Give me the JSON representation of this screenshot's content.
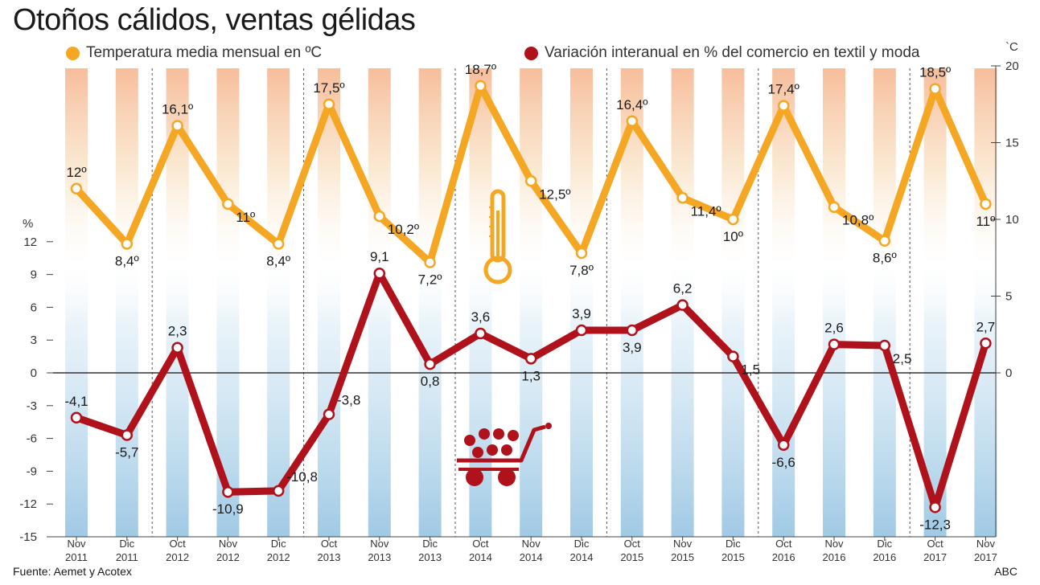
{
  "title": "Otoños cálidos, ventas gélidas",
  "legend": {
    "temperature": "Temperatura media mensual en ºC",
    "variation": "Variación interanual en % del comercio en textil y moda"
  },
  "source": "Fuente: Aemet y Acotex",
  "credit": "ABC",
  "colors": {
    "temperature": "#f5a623",
    "variation": "#b0121c",
    "warm_band": "#f4a77a",
    "cold_band": "#8fc0e0"
  },
  "chart_data": {
    "type": "line",
    "categories": [
      {
        "month": "Nov",
        "year": "2011"
      },
      {
        "month": "Dic",
        "year": "2011"
      },
      {
        "month": "Oct",
        "year": "2012"
      },
      {
        "month": "Nov",
        "year": "2012"
      },
      {
        "month": "Dic",
        "year": "2012"
      },
      {
        "month": "Oct",
        "year": "2013"
      },
      {
        "month": "Nov",
        "year": "2013"
      },
      {
        "month": "Dic",
        "year": "2013"
      },
      {
        "month": "Oct",
        "year": "2014"
      },
      {
        "month": "Nov",
        "year": "2014"
      },
      {
        "month": "Dic",
        "year": "2014"
      },
      {
        "month": "Oct",
        "year": "2015"
      },
      {
        "month": "Nov",
        "year": "2015"
      },
      {
        "month": "Dic",
        "year": "2015"
      },
      {
        "month": "Oct",
        "year": "2016"
      },
      {
        "month": "Nov",
        "year": "2016"
      },
      {
        "month": "Dic",
        "year": "2016"
      },
      {
        "month": "Oct",
        "year": "2017"
      },
      {
        "month": "Nov",
        "year": "2017"
      }
    ],
    "series": [
      {
        "name": "Temperatura media mensual en ºC",
        "axis": "right",
        "values": [
          12,
          8.4,
          16.1,
          11,
          8.4,
          17.5,
          10.2,
          7.2,
          18.7,
          12.5,
          7.8,
          16.4,
          11.4,
          10,
          17.4,
          10.8,
          8.6,
          18.5,
          11
        ],
        "labels": [
          "12º",
          "8,4º",
          "16,1º",
          "11º",
          "8,4º",
          "17,5º",
          "10,2º",
          "7,2º",
          "18,7º",
          "12,5º",
          "7,8º",
          "16,4º",
          "11,4º",
          "10º",
          "17,4º",
          "10,8º",
          "8,6º",
          "18,5º",
          "11º"
        ]
      },
      {
        "name": "Variación interanual en % del comercio en textil y moda",
        "axis": "left",
        "values": [
          -4.1,
          -5.7,
          2.3,
          -10.9,
          -10.8,
          -3.8,
          9.1,
          0.8,
          3.6,
          1.3,
          3.9,
          3.9,
          6.2,
          1.5,
          -6.6,
          2.6,
          2.5,
          -12.3,
          2.7
        ],
        "labels": [
          "-4,1",
          "-5,7",
          "2,3",
          "-10,9",
          "-10,8",
          "-3,8",
          "9,1",
          "0,8",
          "3,6",
          "1,3",
          "3,9",
          "3,9",
          "6,2",
          "1,5",
          "-6,6",
          "2,6",
          "2,5",
          "-12,3",
          "2,7"
        ]
      }
    ],
    "left_axis": {
      "unit": "%",
      "ylim": [
        -15,
        12
      ],
      "ticks": [
        {
          "value": 12,
          "label": "12"
        },
        {
          "value": 9,
          "label": "9"
        },
        {
          "value": 6,
          "label": "6"
        },
        {
          "value": 3,
          "label": "3"
        },
        {
          "value": 0,
          "label": "0"
        },
        {
          "value": -3,
          "label": "-3"
        },
        {
          "value": -6,
          "label": "-6"
        },
        {
          "value": -9,
          "label": "-9"
        },
        {
          "value": -12,
          "label": "-12"
        },
        {
          "value": -15,
          "label": "-15"
        }
      ]
    },
    "right_axis": {
      "unit": "`C",
      "ylim": [
        0,
        20
      ],
      "ticks": [
        {
          "value": 20,
          "label": "20"
        },
        {
          "value": 15,
          "label": "15"
        },
        {
          "value": 10,
          "label": "10"
        },
        {
          "value": 5,
          "label": "5"
        },
        {
          "value": 0,
          "label": "0"
        }
      ]
    },
    "grid": false,
    "legend_position": "top"
  }
}
